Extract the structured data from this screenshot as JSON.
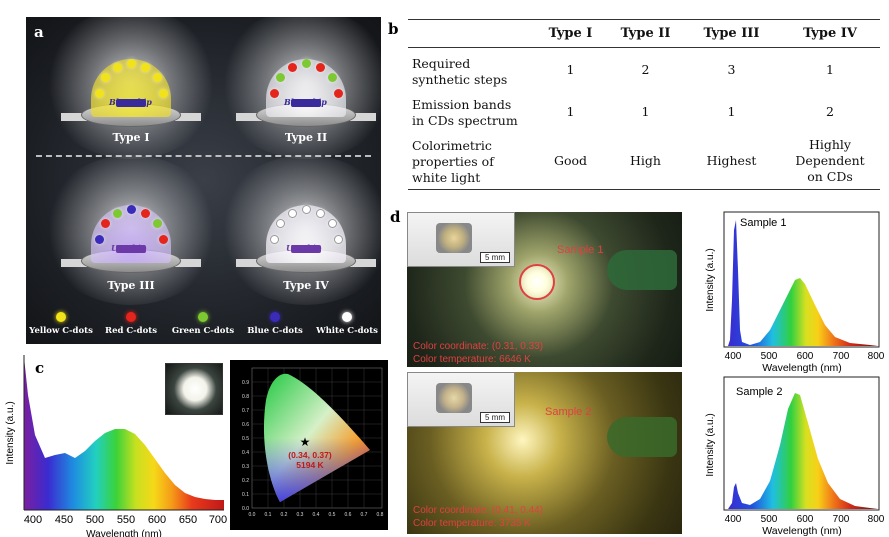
{
  "panel_labels": {
    "a": "a",
    "b": "b",
    "c": "c",
    "d": "d"
  },
  "panel_a": {
    "types": [
      {
        "label": "Type I",
        "chip": "Blue chip"
      },
      {
        "label": "Type II",
        "chip": "Blue chip"
      },
      {
        "label": "Type III",
        "chip": "UV chip"
      },
      {
        "label": "Type IV",
        "chip": "UV chip"
      }
    ],
    "legend": [
      {
        "label": "Yellow C-dots",
        "color": "#f2e21a"
      },
      {
        "label": "Red C-dots",
        "color": "#e5241c"
      },
      {
        "label": "Green C-dots",
        "color": "#7ec832"
      },
      {
        "label": "Blue C-dots",
        "color": "#3a2bb8"
      },
      {
        "label": "White C-dots",
        "color": "#ffffff"
      }
    ]
  },
  "panel_b": {
    "headers": [
      "",
      "Type I",
      "Type II",
      "Type III",
      "Type IV"
    ],
    "rows": [
      {
        "head": [
          "Required",
          "synthetic steps"
        ],
        "cells": [
          "1",
          "2",
          "3",
          "1"
        ]
      },
      {
        "head": [
          "Emission bands",
          "in CDs spectrum"
        ],
        "cells": [
          "1",
          "1",
          "1",
          "2"
        ]
      },
      {
        "head": [
          "Colorimetric",
          "properties of",
          "white light"
        ],
        "cells": [
          "Good",
          "High",
          "Highest",
          "Highly Dependent on CDs"
        ]
      }
    ]
  },
  "panel_c": {
    "ylabel": "Intensity (a.u.)",
    "xlabel": "Wavelength (nm)",
    "xticks": [
      "400",
      "450",
      "500",
      "550",
      "600",
      "650",
      "700"
    ],
    "cie_point": "(0.34, 0.37)",
    "cie_cct": "5194 K",
    "cie_xticks": [
      "0.0",
      "0.1",
      "0.2",
      "0.3",
      "0.4",
      "0.5",
      "0.6",
      "0.7",
      "0.8"
    ],
    "cie_yticks": [
      "0.0",
      "0.1",
      "0.2",
      "0.3",
      "0.4",
      "0.5",
      "0.6",
      "0.7",
      "0.8",
      "0.9"
    ]
  },
  "panel_d": {
    "photos": [
      {
        "sample": "Sample 1",
        "coord": "Color coordinate: (0.31, 0.33)",
        "temp": "Color temperature: 6646 K",
        "scale": "5 mm"
      },
      {
        "sample": "Sample 2",
        "coord": "Color coordinate: (0.41, 0.44)",
        "temp": "Color temperature: 3735 K",
        "scale": "5 mm"
      }
    ],
    "spectra": [
      {
        "title": "Sample 1",
        "ylabel": "Intensity (a.u.)",
        "xlabel": "Wavelength (nm)",
        "xticks": [
          "400",
          "500",
          "600",
          "700",
          "800"
        ]
      },
      {
        "title": "Sample 2",
        "ylabel": "Intensity (a.u.)",
        "xlabel": "Wavelength (nm)",
        "xticks": [
          "400",
          "500",
          "600",
          "700",
          "800"
        ]
      }
    ]
  }
}
